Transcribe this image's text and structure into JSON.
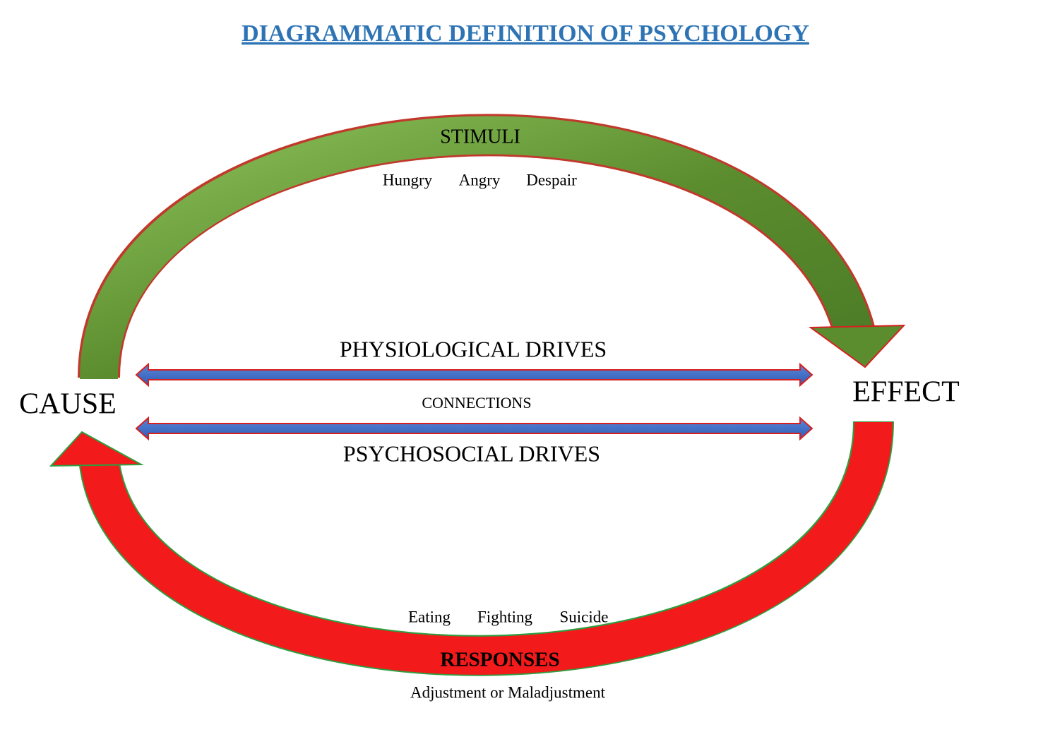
{
  "title": "DIAGRAMMATIC DEFINITION OF PSYCHOLOGY",
  "cause": "CAUSE",
  "effect": "EFFECT",
  "stimuli": {
    "label": "STIMULI",
    "examples": [
      "Hungry",
      "Angry",
      "Despair"
    ]
  },
  "physiological_drives": "PHYSIOLOGICAL DRIVES",
  "connections": "CONNECTIONS",
  "psychosocial_drives": "PSYCHOSOCIAL DRIVES",
  "responses": {
    "label": "RESPONSES",
    "examples": [
      "Eating",
      "Fighting",
      "Suicide"
    ],
    "outcome": "Adjustment or Maladjustment"
  }
}
